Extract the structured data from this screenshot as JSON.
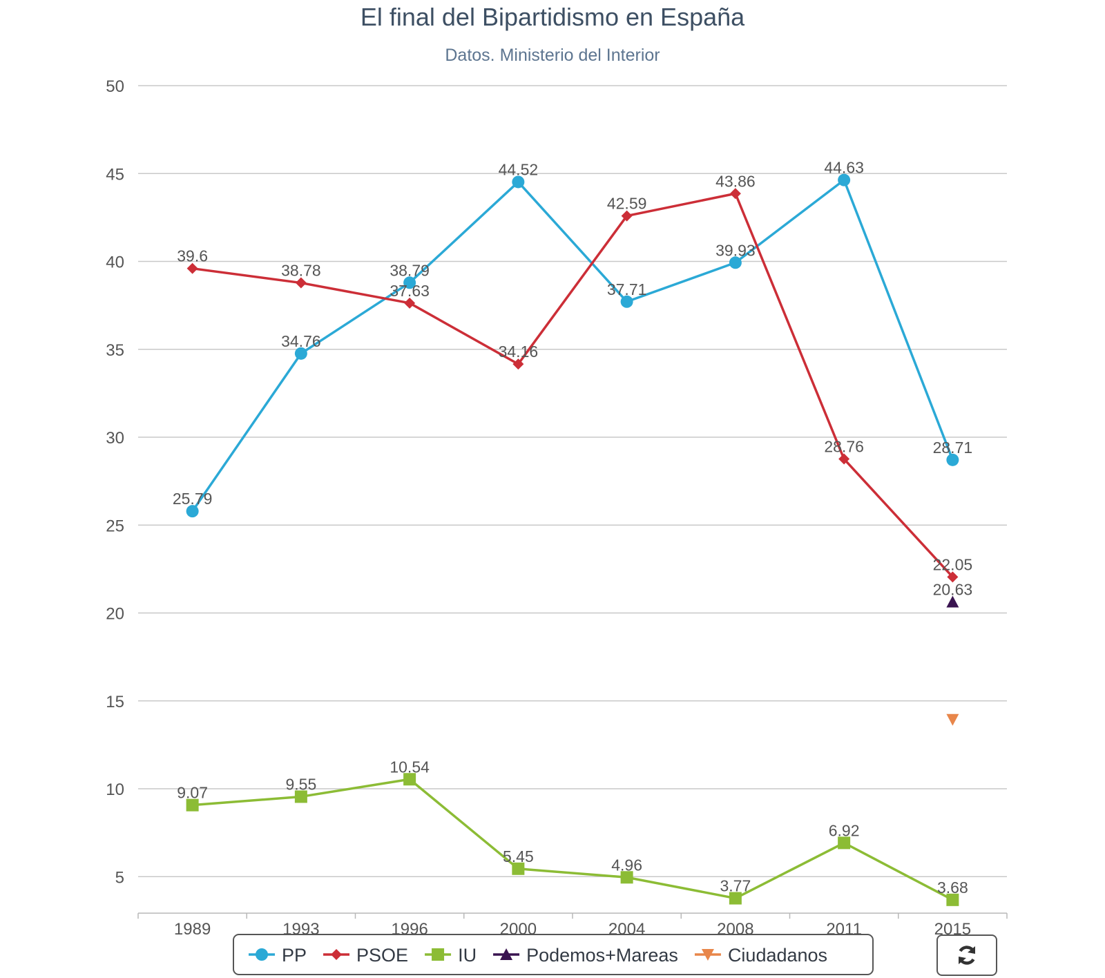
{
  "chart_data": {
    "type": "line",
    "title": "El final del Bipartidismo en España",
    "subtitle": "Datos. Ministerio del Interior",
    "xlabel": "",
    "ylabel": "",
    "ylim": [
      3,
      50
    ],
    "yticks": [
      50,
      45,
      40,
      35,
      30,
      25,
      20,
      15,
      10,
      5
    ],
    "categories": [
      "1989",
      "1993",
      "1996",
      "2000",
      "2004",
      "2008",
      "2011",
      "2015"
    ],
    "grid": true,
    "legend_position": "bottom",
    "series": [
      {
        "name": "PP",
        "color": "#2ba9d6",
        "marker": "circle",
        "values": [
          25.79,
          34.76,
          38.79,
          44.52,
          37.71,
          39.93,
          44.63,
          28.71
        ],
        "labels": [
          "25.79",
          "34.76",
          "38.79",
          "44.52",
          "37.71",
          "39.93",
          "44.63",
          "28.71"
        ]
      },
      {
        "name": "PSOE",
        "color": "#cc2e37",
        "marker": "diamond",
        "values": [
          39.6,
          38.78,
          37.63,
          34.16,
          42.59,
          43.86,
          28.76,
          22.05
        ],
        "labels": [
          "39.6",
          "38.78",
          "37.63",
          "34.16",
          "42.59",
          "43.86",
          "28.76",
          "22.05"
        ]
      },
      {
        "name": "IU",
        "color": "#8cbc35",
        "marker": "square",
        "values": [
          9.07,
          9.55,
          10.54,
          5.45,
          4.96,
          3.77,
          6.92,
          3.68
        ],
        "labels": [
          "9.07",
          "9.55",
          "10.54",
          "5.45",
          "4.96",
          "3.77",
          "6.92",
          "3.68"
        ]
      },
      {
        "name": "Podemos+Mareas",
        "color": "#3a1450",
        "marker": "triangle",
        "values": [
          null,
          null,
          null,
          null,
          null,
          null,
          null,
          20.63
        ],
        "labels": [
          null,
          null,
          null,
          null,
          null,
          null,
          null,
          "20.63"
        ]
      },
      {
        "name": "Ciudadanos",
        "color": "#e8864a",
        "marker": "triangle-down",
        "values": [
          null,
          null,
          null,
          null,
          null,
          null,
          null,
          13.94
        ],
        "labels": [
          null,
          null,
          null,
          null,
          null,
          null,
          null,
          null
        ]
      }
    ]
  },
  "controls": {
    "refresh_icon": "refresh-icon"
  }
}
